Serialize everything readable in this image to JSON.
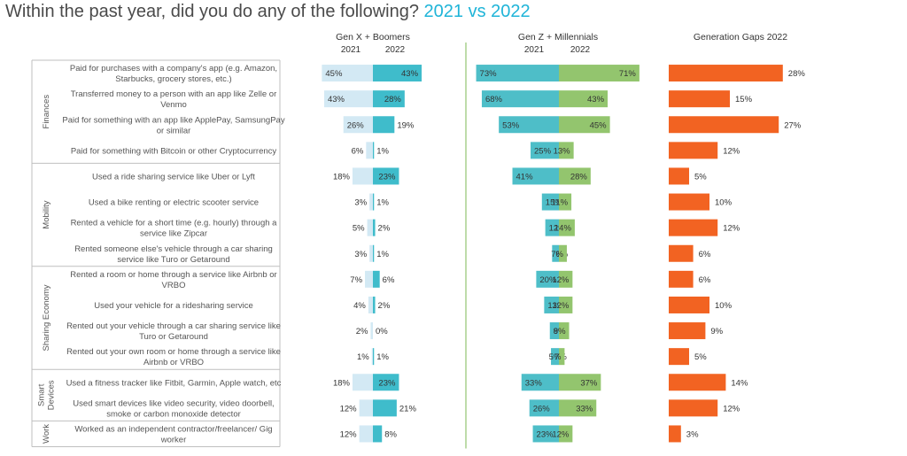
{
  "title": {
    "main": "Within the past year, did you do any of the following?",
    "highlight": "2021 vs 2022"
  },
  "colors": {
    "genx_2021": "#d3e9f4",
    "genx_2022": "#3fbccb",
    "genz_2021": "#4ebec8",
    "genz_2022": "#93c56e",
    "gap": "#f26322",
    "divider": "#a8d08d"
  },
  "chart_data": {
    "type": "bar",
    "panels": [
      {
        "name": "Gen X + Boomers",
        "years": [
          "2021",
          "2022"
        ]
      },
      {
        "name": "Gen Z + Millennials",
        "years": [
          "2021",
          "2022"
        ]
      },
      {
        "name": "Generation Gaps 2022"
      }
    ],
    "groups": [
      {
        "name": "Finances",
        "rows": 4
      },
      {
        "name": "Mobility",
        "rows": 4
      },
      {
        "name": "Sharing Economy",
        "rows": 4
      },
      {
        "name": "Smart Devices",
        "rows": 2
      },
      {
        "name": "Work",
        "rows": 1
      }
    ],
    "categories": [
      [
        "Paid for purchases with a company's app (e.g. Amazon,",
        "Starbucks, grocery stores, etc.)"
      ],
      [
        "Transferred money to a person with an app like Zelle or",
        "Venmo"
      ],
      [
        "Paid for something with an app like ApplePay, SamsungPay",
        "or similar"
      ],
      [
        "Paid for something with Bitcoin or other Cryptocurrency"
      ],
      [
        "Used a ride sharing service like Uber or Lyft"
      ],
      [
        "Used a bike renting or electric scooter service"
      ],
      [
        "Rented a vehicle for a short time (e.g. hourly) through a",
        "service like Zipcar"
      ],
      [
        "Rented someone else's vehicle through a car sharing",
        "service like Turo or Getaround"
      ],
      [
        "Rented a room or home through a service like Airbnb or",
        "VRBO"
      ],
      [
        "Used your vehicle for a ridesharing service"
      ],
      [
        "Rented out your vehicle through a car sharing service like",
        "Turo or Getaround"
      ],
      [
        "Rented out your own room or home through a service like",
        "Airbnb or VRBO"
      ],
      [
        "Used a fitness tracker like Fitbit, Garmin, Apple watch, etc"
      ],
      [
        "Used smart devices like video security, video doorbell,",
        "smoke or carbon monoxide detector"
      ],
      [
        "Worked as an independent contractor/freelancer/ Gig",
        "worker"
      ]
    ],
    "series": [
      {
        "name": "Gen X + Boomers 2021",
        "values": [
          45,
          43,
          26,
          6,
          18,
          3,
          5,
          3,
          7,
          4,
          2,
          1,
          18,
          12,
          12
        ]
      },
      {
        "name": "Gen X + Boomers 2022",
        "values": [
          43,
          28,
          19,
          1,
          23,
          1,
          2,
          1,
          6,
          2,
          0,
          1,
          23,
          21,
          8
        ]
      },
      {
        "name": "Gen Z + Millennials 2021",
        "values": [
          73,
          68,
          53,
          25,
          41,
          15,
          12,
          6,
          20,
          13,
          8,
          7,
          33,
          26,
          23
        ]
      },
      {
        "name": "Gen Z + Millennials 2022",
        "values": [
          71,
          43,
          45,
          13,
          28,
          11,
          14,
          7,
          12,
          12,
          9,
          5,
          37,
          33,
          12
        ]
      },
      {
        "name": "Generation Gaps 2022",
        "values": [
          28,
          15,
          27,
          12,
          5,
          10,
          12,
          6,
          6,
          10,
          9,
          5,
          14,
          12,
          3
        ]
      }
    ],
    "unit": "%",
    "xlabel": "",
    "ylabel": ""
  }
}
